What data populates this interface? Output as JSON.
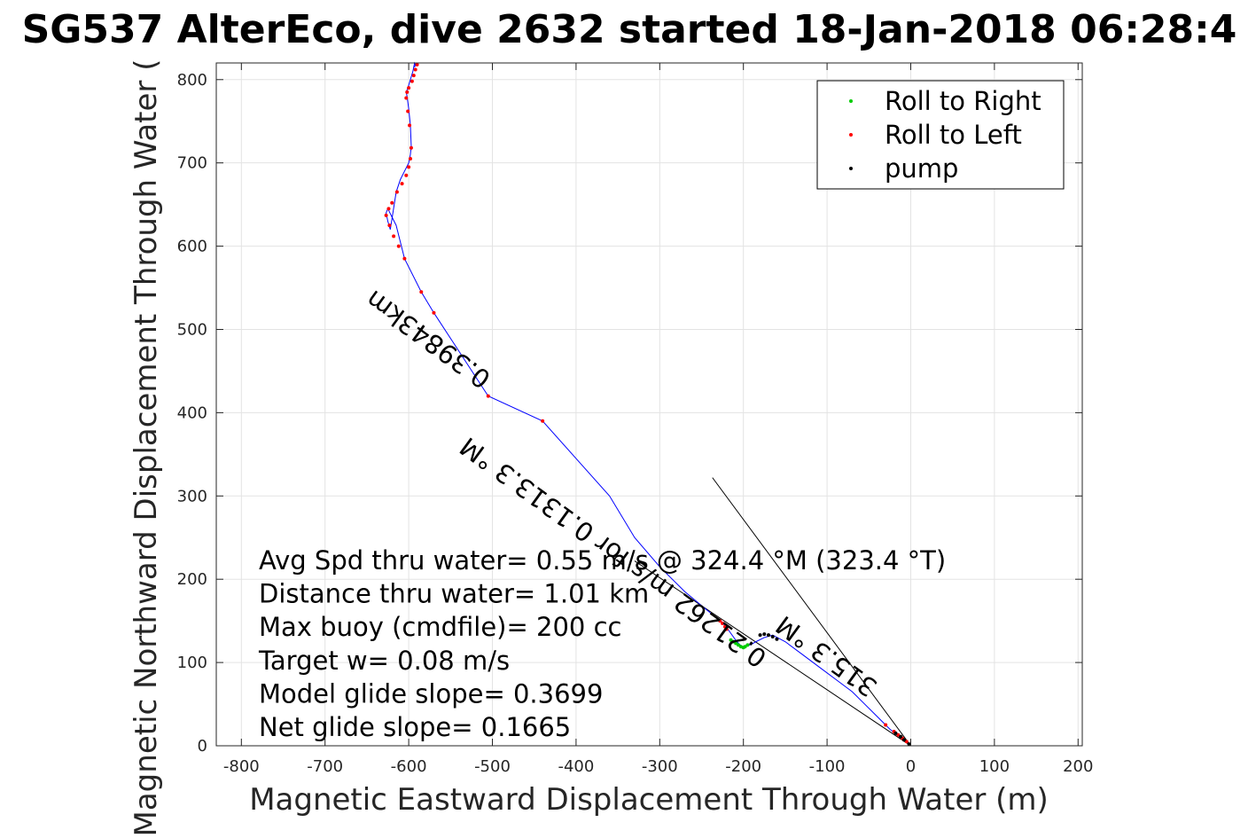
{
  "chart_data": {
    "type": "line",
    "title": "SG537 AlterEco, dive 2632 started 18-Jan-2018 06:28:4",
    "xlabel": "Magnetic Eastward Displacement Through Water (m)",
    "ylabel": "Magnetic Northward Displacement Through Water (",
    "xlim": [
      -830,
      205
    ],
    "ylim": [
      0,
      820
    ],
    "xticks": [
      -800,
      -700,
      -600,
      -500,
      -400,
      -300,
      -200,
      -100,
      0,
      100,
      200
    ],
    "yticks": [
      0,
      100,
      200,
      300,
      400,
      500,
      600,
      700,
      800
    ],
    "grid": true,
    "legend": {
      "placement": "top-right",
      "entries": [
        {
          "label": "Roll to Right",
          "color": "#00cc00"
        },
        {
          "label": "Roll to Left",
          "color": "#ff0000"
        },
        {
          "label": "pump",
          "color": "#000000"
        }
      ]
    },
    "track": {
      "name": "track",
      "color": "#0000ff",
      "x": [
        0,
        -5,
        -15,
        -25,
        -40,
        -55,
        -70,
        -90,
        -110,
        -130,
        -150,
        -165,
        -175,
        -185,
        -190,
        -195,
        -200,
        -205,
        -210,
        -215,
        -220,
        -225,
        -240,
        -270,
        -300,
        -330,
        -360,
        -400,
        -440,
        -505,
        -570,
        -585,
        -605,
        -610,
        -615,
        -620,
        -625,
        -627,
        -625,
        -622,
        -615,
        -610,
        -605,
        -600,
        -598,
        -597,
        -598,
        -600,
        -602,
        -603,
        -601,
        -598,
        -595,
        -593,
        -592,
        -593
      ],
      "y": [
        0,
        5,
        12,
        20,
        35,
        50,
        65,
        80,
        95,
        110,
        125,
        133,
        130,
        125,
        122,
        120,
        118,
        122,
        128,
        135,
        142,
        148,
        160,
        185,
        215,
        250,
        300,
        345,
        390,
        420,
        520,
        545,
        585,
        605,
        625,
        635,
        645,
        640,
        630,
        620,
        665,
        680,
        690,
        700,
        710,
        720,
        745,
        765,
        780,
        785,
        790,
        800,
        810,
        820,
        818,
        815
      ]
    },
    "roll_right": {
      "color": "#00cc00",
      "x": [
        -195,
        -198,
        -200,
        -203,
        -206,
        -209,
        -212,
        -215
      ],
      "y": [
        121,
        119,
        118,
        119,
        121,
        123,
        125,
        127
      ]
    },
    "roll_left": {
      "color": "#ff0000",
      "x": [
        -5,
        -10,
        -15,
        -20,
        -30,
        -220,
        -222,
        -225,
        -228,
        -440,
        -505,
        -570,
        -585,
        -605,
        -612,
        -618,
        -623,
        -627,
        -624,
        -620,
        -614,
        -608,
        -603,
        -600,
        -598,
        -597,
        -599,
        -601,
        -603,
        -602,
        -600,
        -596,
        -594,
        -592,
        -590
      ],
      "y": [
        5,
        9,
        13,
        17,
        25,
        140,
        143,
        147,
        150,
        390,
        420,
        520,
        545,
        585,
        600,
        612,
        625,
        637,
        645,
        652,
        665,
        675,
        685,
        695,
        705,
        718,
        745,
        762,
        778,
        785,
        790,
        798,
        805,
        812,
        818
      ]
    },
    "pump": {
      "color": "#000000",
      "x": [
        -2,
        -8,
        -12,
        -18,
        -160,
        -165,
        -170,
        -175,
        -180
      ],
      "y": [
        2,
        7,
        11,
        15,
        128,
        131,
        133,
        134,
        133
      ]
    },
    "pump_lines": [
      {
        "color": "#000000",
        "x": [
          0,
          -237
        ],
        "y": [
          0,
          322
        ]
      },
      {
        "color": "#000000",
        "x": [
          0,
          -330
        ],
        "y": [
          0,
          222
        ]
      }
    ],
    "rotated_labels": [
      {
        "text": "0.39843km",
        "x": -500,
        "y": 445,
        "angle": 36
      },
      {
        "text": "0.21262 m/s for 0.1313.3 °M",
        "x": -170,
        "y": 110,
        "angle": 36
      },
      {
        "text": "315.3 °M",
        "x": -38,
        "y": 75,
        "angle": 36
      }
    ],
    "stats": [
      "Avg Spd thru water=  0.55 m/s @ 324.4 °M (323.4 °T)",
      "Distance thru water=  1.01 km",
      "Max buoy (cmdfile)= 200 cc",
      "Target w= 0.08 m/s",
      "Model glide slope= 0.3699",
      "Net glide slope= 0.1665"
    ]
  }
}
